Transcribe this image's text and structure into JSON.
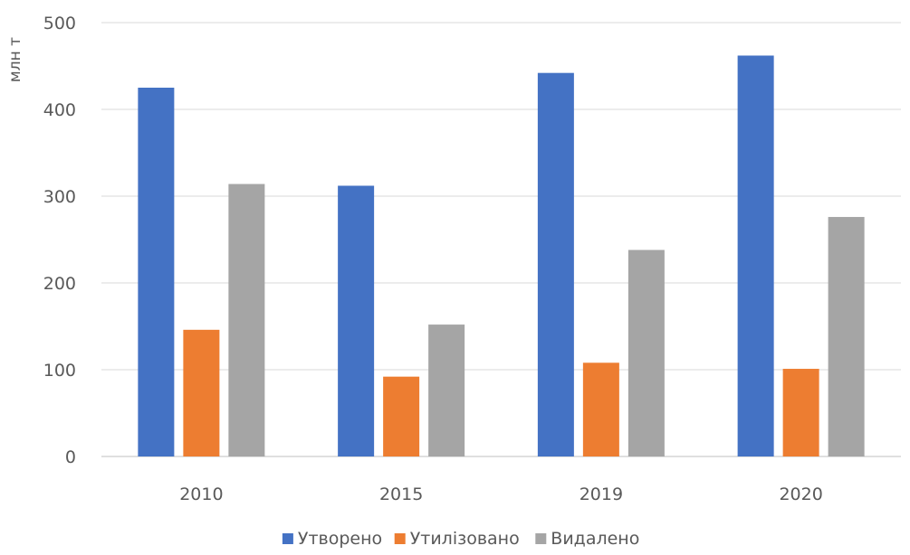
{
  "chart_data": {
    "type": "bar",
    "ylabel": "млн т",
    "ylim": [
      0,
      500
    ],
    "yticks": [
      0,
      100,
      200,
      300,
      400,
      500
    ],
    "categories": [
      "2010",
      "2015",
      "2019",
      "2020"
    ],
    "series": [
      {
        "name": "Утворено",
        "color": "#4472C4",
        "values": [
          425,
          312,
          442,
          462
        ]
      },
      {
        "name": "Утилізовано",
        "color": "#ED7D31",
        "values": [
          146,
          92,
          108,
          101
        ]
      },
      {
        "name": "Видалено",
        "color": "#A5A5A5",
        "values": [
          314,
          152,
          238,
          276
        ]
      }
    ],
    "grid": true,
    "legend_position": "bottom"
  }
}
